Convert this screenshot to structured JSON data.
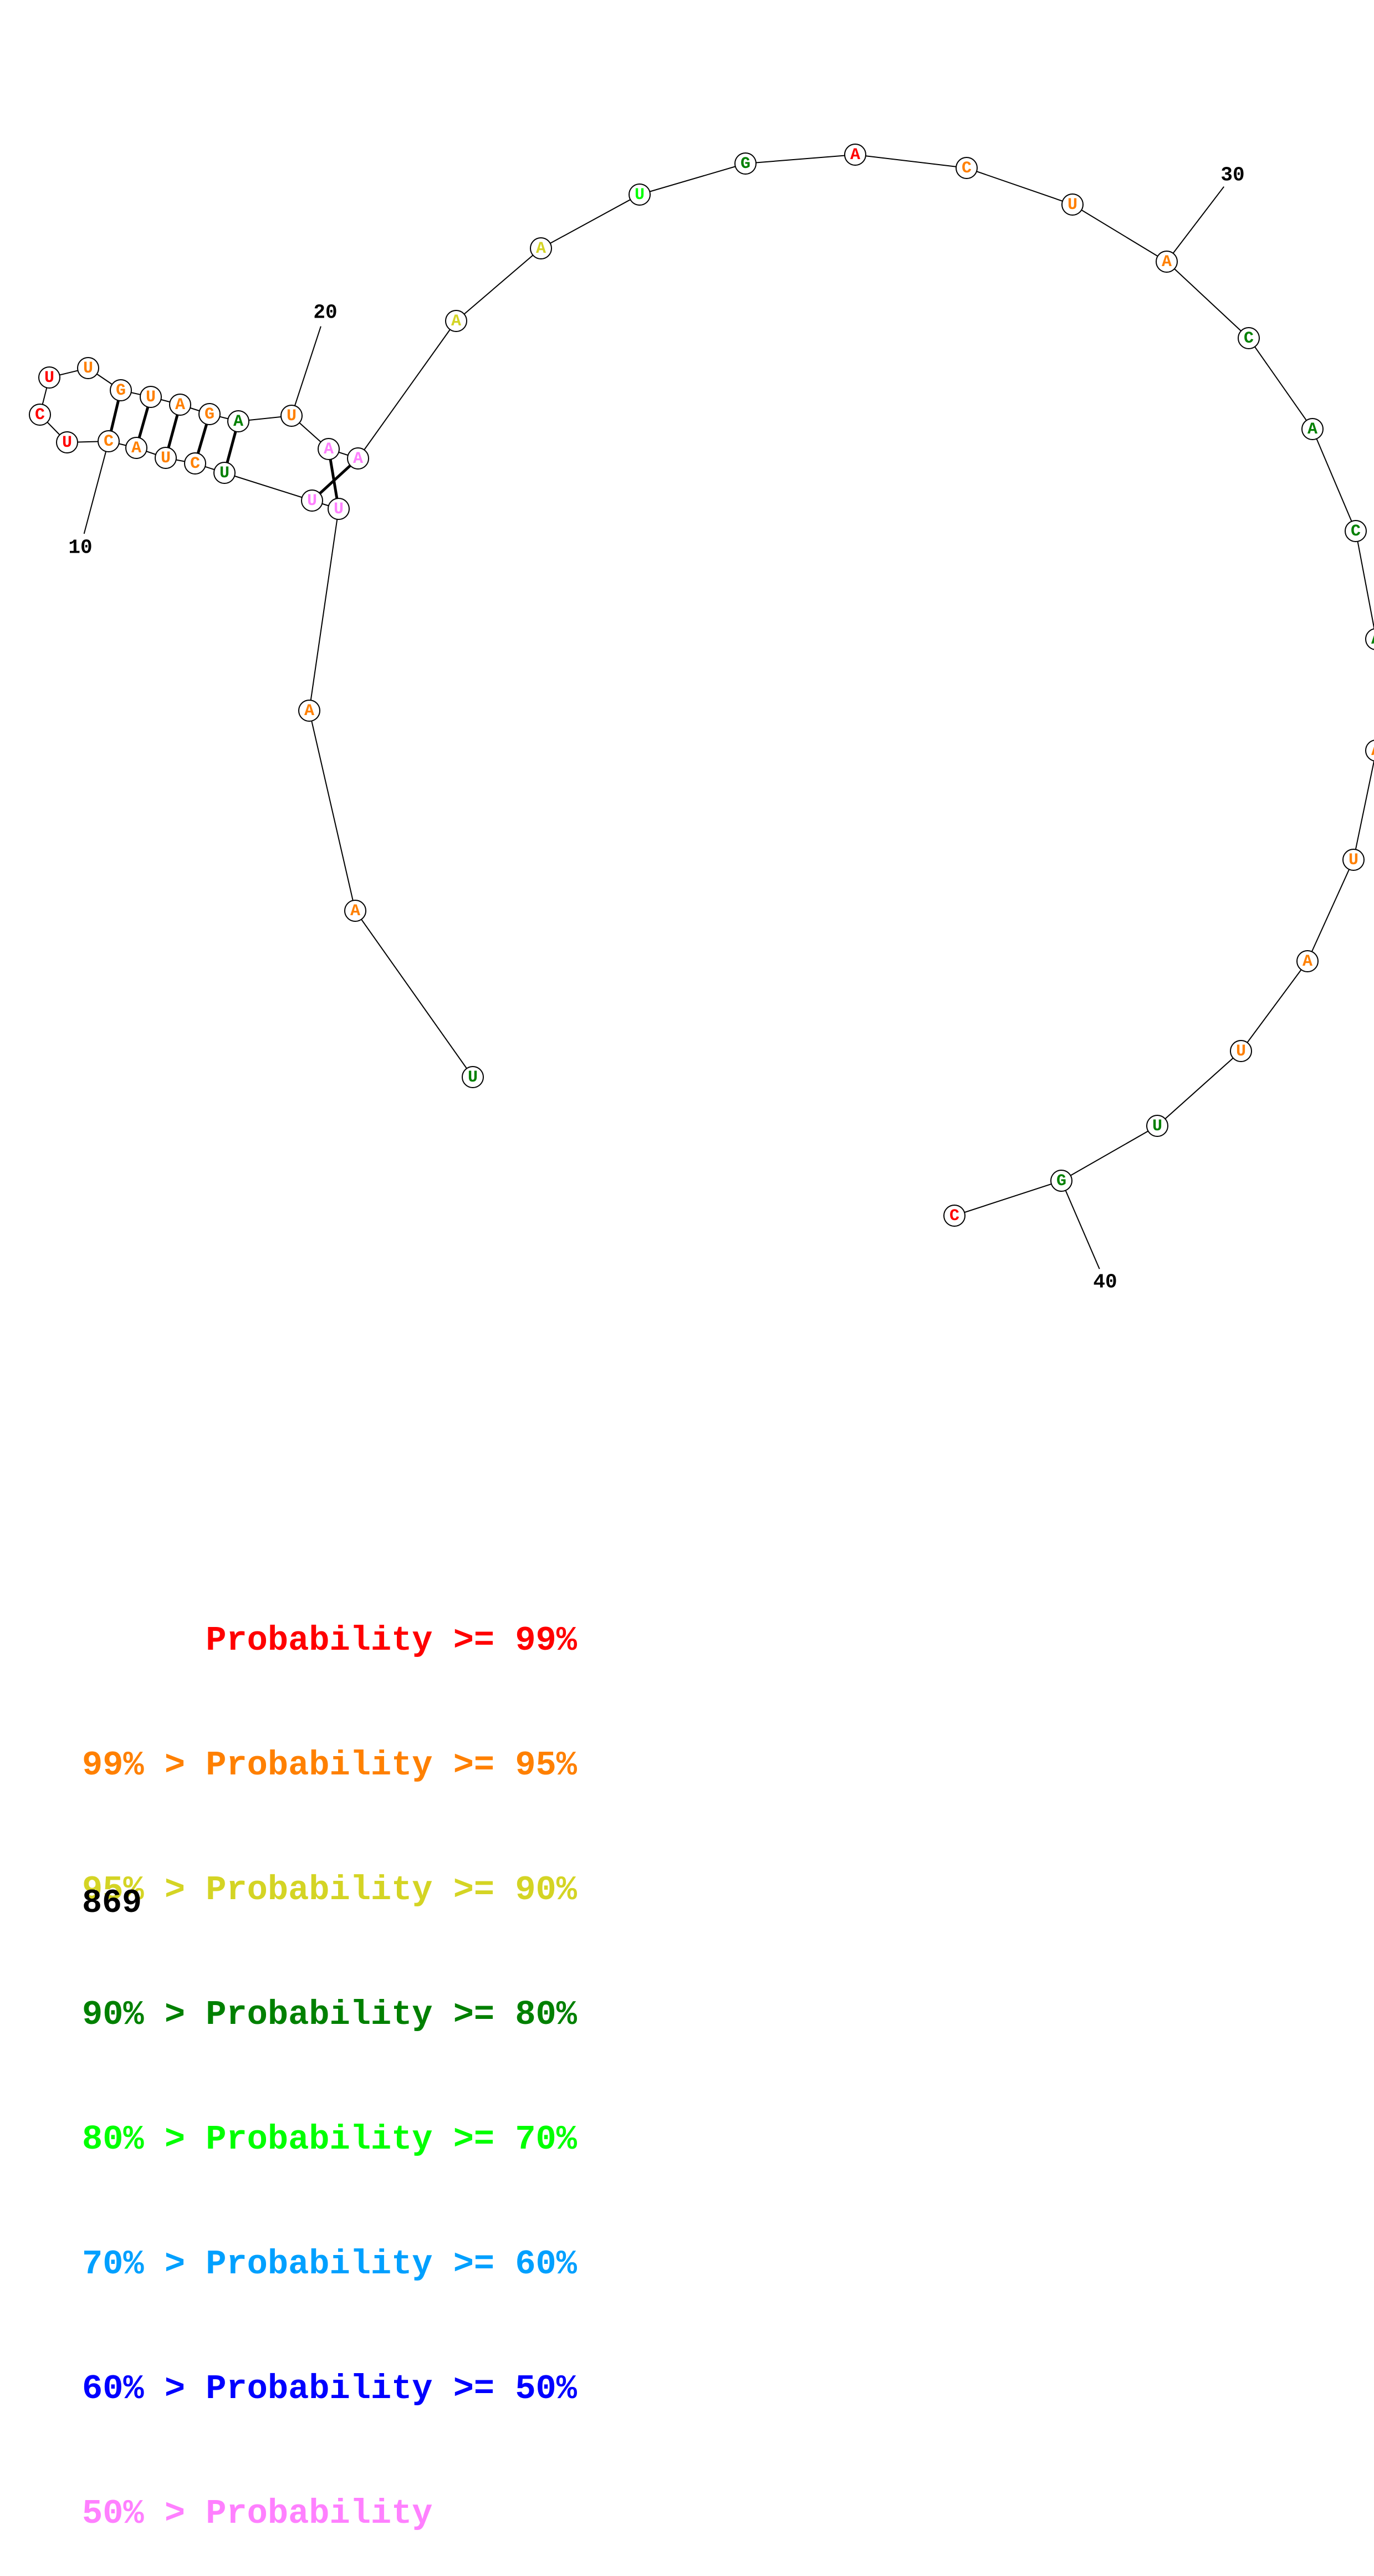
{
  "structure": {
    "nucleotides": [
      {
        "n": 1,
        "base": "U",
        "bucket": 3
      },
      {
        "n": 2,
        "base": "A",
        "bucket": 1
      },
      {
        "n": 3,
        "base": "A",
        "bucket": 1
      },
      {
        "n": 4,
        "base": "U",
        "bucket": 7
      },
      {
        "n": 5,
        "base": "U",
        "bucket": 7
      },
      {
        "n": 6,
        "base": "U",
        "bucket": 3
      },
      {
        "n": 7,
        "base": "C",
        "bucket": 1
      },
      {
        "n": 8,
        "base": "U",
        "bucket": 1
      },
      {
        "n": 9,
        "base": "A",
        "bucket": 1
      },
      {
        "n": 10,
        "base": "C",
        "bucket": 1
      },
      {
        "n": 11,
        "base": "U",
        "bucket": 0
      },
      {
        "n": 12,
        "base": "C",
        "bucket": 0
      },
      {
        "n": 13,
        "base": "U",
        "bucket": 0
      },
      {
        "n": 14,
        "base": "U",
        "bucket": 1
      },
      {
        "n": 15,
        "base": "G",
        "bucket": 1
      },
      {
        "n": 16,
        "base": "U",
        "bucket": 1
      },
      {
        "n": 17,
        "base": "A",
        "bucket": 1
      },
      {
        "n": 18,
        "base": "G",
        "bucket": 1
      },
      {
        "n": 19,
        "base": "A",
        "bucket": 3
      },
      {
        "n": 20,
        "base": "U",
        "bucket": 1
      },
      {
        "n": 21,
        "base": "A",
        "bucket": 7
      },
      {
        "n": 22,
        "base": "A",
        "bucket": 7
      },
      {
        "n": 23,
        "base": "A",
        "bucket": 2
      },
      {
        "n": 24,
        "base": "A",
        "bucket": 2
      },
      {
        "n": 25,
        "base": "U",
        "bucket": 4
      },
      {
        "n": 26,
        "base": "G",
        "bucket": 3
      },
      {
        "n": 27,
        "base": "A",
        "bucket": 0
      },
      {
        "n": 28,
        "base": "C",
        "bucket": 1
      },
      {
        "n": 29,
        "base": "U",
        "bucket": 1
      },
      {
        "n": 30,
        "base": "A",
        "bucket": 1
      },
      {
        "n": 31,
        "base": "C",
        "bucket": 3
      },
      {
        "n": 32,
        "base": "A",
        "bucket": 3
      },
      {
        "n": 33,
        "base": "C",
        "bucket": 3
      },
      {
        "n": 34,
        "base": "A",
        "bucket": 3
      },
      {
        "n": 35,
        "base": "A",
        "bucket": 1
      },
      {
        "n": 36,
        "base": "U",
        "bucket": 1
      },
      {
        "n": 37,
        "base": "A",
        "bucket": 1
      },
      {
        "n": 38,
        "base": "U",
        "bucket": 1
      },
      {
        "n": 39,
        "base": "U",
        "bucket": 3
      },
      {
        "n": 40,
        "base": "G",
        "bucket": 3
      },
      {
        "n": 41,
        "base": "C",
        "bucket": 0
      }
    ],
    "pairs": [
      [
        4,
        21
      ],
      [
        5,
        22
      ],
      [
        6,
        19
      ],
      [
        7,
        18
      ],
      [
        8,
        17
      ],
      [
        9,
        16
      ],
      [
        10,
        15
      ]
    ],
    "index_labels": [
      {
        "n": 10,
        "text": "10"
      },
      {
        "n": 20,
        "text": "20"
      },
      {
        "n": 30,
        "text": "30"
      },
      {
        "n": 40,
        "text": "40"
      }
    ]
  },
  "legend": {
    "colors": [
      "#ff0000",
      "#ff8000",
      "#d4d424",
      "#008000",
      "#00ff00",
      "#00a0ff",
      "#0000ff",
      "#ff80ff"
    ],
    "lines": [
      {
        "prefix": "   ",
        "text": "   Probability >= 99%"
      },
      {
        "prefix": "99% > ",
        "text": "Probability >= 95%"
      },
      {
        "prefix": "95% > ",
        "text": "Probability >= 90%"
      },
      {
        "prefix": "90% > ",
        "text": "Probability >= 80%"
      },
      {
        "prefix": "80% > ",
        "text": "Probability >= 70%"
      },
      {
        "prefix": "70% > ",
        "text": "Probability >= 60%"
      },
      {
        "prefix": "60% > ",
        "text": "Probability >= 50%"
      },
      {
        "prefix": "50% > ",
        "text": "Probability"
      }
    ]
  },
  "structure_id": "869"
}
